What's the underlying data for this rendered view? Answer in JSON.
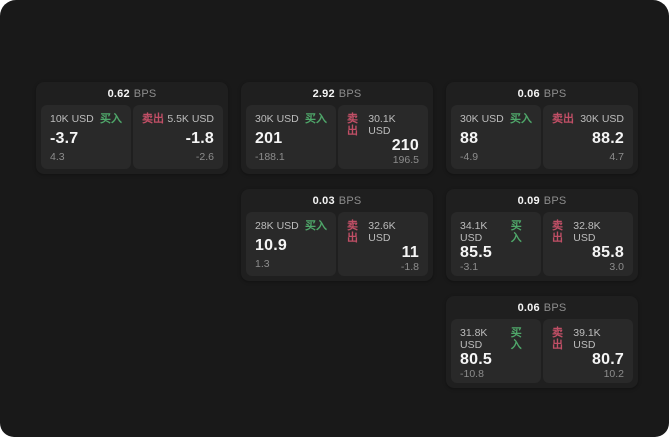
{
  "app": {
    "name": "quote-dashboard",
    "background": "#191919",
    "page_background": "#ffffff",
    "card_background": "#1f1f1f",
    "panel_background": "#292929"
  },
  "labels": {
    "bps": "BPS",
    "buy": "买入",
    "sell": "卖出"
  },
  "colors": {
    "buy": "#4fa76a",
    "sell": "#c14f66",
    "value_text": "#f5f5f5",
    "muted_text": "#8d8d8d"
  },
  "cards": [
    {
      "bps": "0.62",
      "col": 0,
      "row": 0,
      "buy": {
        "amount": "10K USD",
        "price": "-3.7",
        "delta": "4.3"
      },
      "sell": {
        "amount": "5.5K USD",
        "price": "-1.8",
        "delta": "-2.6"
      }
    },
    {
      "bps": "2.92",
      "col": 1,
      "row": 0,
      "buy": {
        "amount": "30K USD",
        "price": "201",
        "delta": "-188.1"
      },
      "sell": {
        "amount": "30.1K USD",
        "price": "210",
        "delta": "196.5"
      }
    },
    {
      "bps": "0.06",
      "col": 2,
      "row": 0,
      "buy": {
        "amount": "30K USD",
        "price": "88",
        "delta": "-4.9"
      },
      "sell": {
        "amount": "30K USD",
        "price": "88.2",
        "delta": "4.7"
      }
    },
    {
      "bps": "0.03",
      "col": 1,
      "row": 1,
      "buy": {
        "amount": "28K USD",
        "price": "10.9",
        "delta": "1.3"
      },
      "sell": {
        "amount": "32.6K USD",
        "price": "11",
        "delta": "-1.8"
      }
    },
    {
      "bps": "0.09",
      "col": 2,
      "row": 1,
      "buy": {
        "amount": "34.1K USD",
        "price": "85.5",
        "delta": "-3.1"
      },
      "sell": {
        "amount": "32.8K USD",
        "price": "85.8",
        "delta": "3.0"
      }
    },
    {
      "bps": "0.06",
      "col": 2,
      "row": 2,
      "buy": {
        "amount": "31.8K USD",
        "price": "80.5",
        "delta": "-10.8"
      },
      "sell": {
        "amount": "39.1K USD",
        "price": "80.7",
        "delta": "10.2"
      }
    }
  ]
}
